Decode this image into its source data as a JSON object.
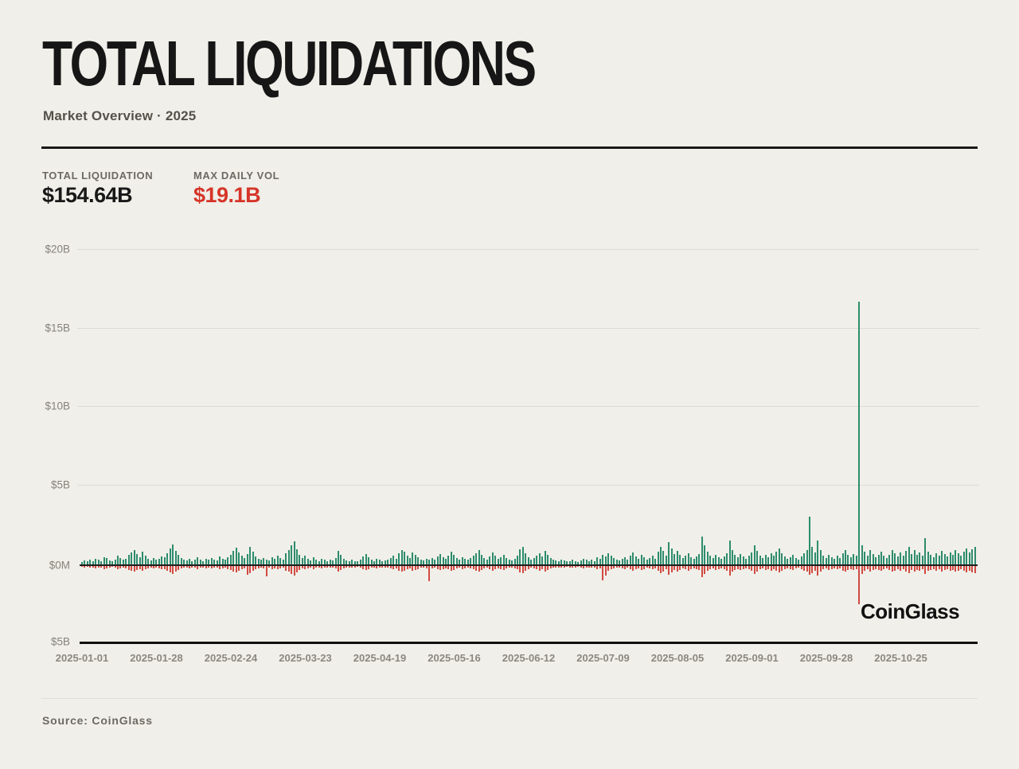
{
  "header": {
    "title": "TOTAL LIQUIDATIONS",
    "subtitle": "Market Overview · 2025"
  },
  "stats": [
    {
      "label": "TOTAL LIQUIDATION",
      "value": "$154.64B",
      "color": "#181818"
    },
    {
      "label": "MAX DAILY VOL",
      "value": "$19.1B",
      "color": "#d63428"
    }
  ],
  "watermark": "CoinGlass",
  "footer": {
    "source": "Source: CoinGlass"
  },
  "colors": {
    "background": "#f0efe9",
    "up_bar": "#2e8c6d",
    "down_bar": "#d14a42",
    "gridline": "#dcdbd3",
    "axis_text": "#8b8880"
  },
  "chart_data": {
    "type": "bar",
    "title": "Total liquidations per day, 2025",
    "x_start_date": "2025-01-01",
    "x_tick_labels": [
      "2025-01-01",
      "2025-01-28",
      "2025-02-24",
      "2025-03-23",
      "2025-04-19",
      "2025-05-16",
      "2025-06-12",
      "2025-07-09",
      "2025-08-05",
      "2025-09-01",
      "2025-09-28",
      "2025-10-25"
    ],
    "y_tick_labels": [
      "$20B",
      "$15B",
      "$10B",
      "$5B",
      "$0M",
      "$5B"
    ],
    "y_axis_unit": "USD billions (bottom $5B is plotted downward)",
    "ylim": [
      -5,
      20
    ],
    "grid": "horizontal",
    "notable_points": [
      {
        "date": "2025-10-10",
        "up": 16.6,
        "down": 2.4,
        "note": "largest spike, max daily vol $19.1B"
      },
      {
        "date": "2025-09-22",
        "up": 3.0,
        "down": 0.55
      }
    ],
    "series": [
      {
        "name": "green-up",
        "color": "#2e8c6d",
        "values": [
          0.15,
          0.25,
          0.18,
          0.3,
          0.22,
          0.35,
          0.28,
          0.2,
          0.45,
          0.38,
          0.25,
          0.18,
          0.3,
          0.55,
          0.4,
          0.28,
          0.35,
          0.6,
          0.75,
          0.9,
          0.65,
          0.45,
          0.8,
          0.55,
          0.35,
          0.25,
          0.4,
          0.3,
          0.35,
          0.5,
          0.45,
          0.7,
          1.0,
          1.25,
          0.85,
          0.6,
          0.4,
          0.3,
          0.25,
          0.35,
          0.2,
          0.28,
          0.45,
          0.3,
          0.22,
          0.35,
          0.28,
          0.4,
          0.3,
          0.25,
          0.5,
          0.35,
          0.28,
          0.45,
          0.6,
          0.85,
          1.05,
          0.75,
          0.55,
          0.4,
          0.65,
          1.1,
          0.8,
          0.5,
          0.35,
          0.28,
          0.4,
          0.3,
          0.25,
          0.45,
          0.35,
          0.55,
          0.4,
          0.3,
          0.7,
          0.9,
          1.2,
          1.45,
          0.95,
          0.6,
          0.4,
          0.55,
          0.35,
          0.25,
          0.45,
          0.3,
          0.22,
          0.35,
          0.28,
          0.2,
          0.3,
          0.25,
          0.4,
          0.85,
          0.6,
          0.35,
          0.25,
          0.2,
          0.3,
          0.22,
          0.18,
          0.28,
          0.5,
          0.65,
          0.45,
          0.3,
          0.22,
          0.35,
          0.28,
          0.2,
          0.25,
          0.3,
          0.4,
          0.55,
          0.35,
          0.7,
          0.9,
          0.8,
          0.55,
          0.4,
          0.75,
          0.6,
          0.45,
          0.3,
          0.25,
          0.35,
          0.28,
          0.4,
          0.3,
          0.5,
          0.65,
          0.45,
          0.35,
          0.55,
          0.8,
          0.6,
          0.4,
          0.3,
          0.45,
          0.35,
          0.28,
          0.4,
          0.55,
          0.7,
          0.9,
          0.6,
          0.4,
          0.3,
          0.5,
          0.75,
          0.55,
          0.35,
          0.45,
          0.6,
          0.4,
          0.3,
          0.25,
          0.35,
          0.55,
          0.95,
          1.1,
          0.7,
          0.45,
          0.3,
          0.4,
          0.55,
          0.7,
          0.5,
          0.85,
          0.6,
          0.4,
          0.3,
          0.25,
          0.2,
          0.3,
          0.25,
          0.18,
          0.22,
          0.28,
          0.2,
          0.15,
          0.25,
          0.35,
          0.3,
          0.22,
          0.28,
          0.2,
          0.45,
          0.35,
          0.6,
          0.5,
          0.7,
          0.55,
          0.4,
          0.3,
          0.25,
          0.35,
          0.45,
          0.3,
          0.55,
          0.75,
          0.5,
          0.35,
          0.6,
          0.45,
          0.3,
          0.4,
          0.55,
          0.35,
          0.8,
          1.1,
          0.85,
          0.55,
          1.4,
          1.0,
          0.65,
          0.85,
          0.6,
          0.4,
          0.55,
          0.7,
          0.45,
          0.35,
          0.5,
          0.65,
          1.75,
          1.2,
          0.8,
          0.55,
          0.4,
          0.6,
          0.45,
          0.35,
          0.5,
          0.7,
          1.5,
          0.9,
          0.6,
          0.45,
          0.65,
          0.5,
          0.35,
          0.55,
          0.75,
          1.2,
          0.85,
          0.55,
          0.4,
          0.6,
          0.45,
          0.7,
          0.55,
          0.8,
          1.0,
          0.7,
          0.5,
          0.35,
          0.45,
          0.6,
          0.4,
          0.3,
          0.5,
          0.7,
          0.9,
          3.0,
          1.1,
          0.75,
          1.5,
          0.9,
          0.55,
          0.4,
          0.6,
          0.45,
          0.35,
          0.55,
          0.4,
          0.7,
          0.9,
          0.6,
          0.45,
          0.65,
          0.55,
          16.6,
          1.2,
          0.8,
          0.55,
          0.9,
          0.65,
          0.45,
          0.6,
          0.8,
          0.55,
          0.4,
          0.6,
          0.9,
          0.7,
          0.5,
          0.75,
          0.55,
          0.85,
          1.1,
          0.65,
          0.9,
          0.6,
          0.75,
          0.55,
          1.65,
          0.8,
          0.6,
          0.45,
          0.7,
          0.55,
          0.85,
          0.65,
          0.5,
          0.75,
          0.6,
          0.9,
          0.7,
          0.55,
          0.8,
          1.0,
          0.75,
          0.95,
          1.1
        ]
      },
      {
        "name": "red-down",
        "color": "#d14a42",
        "values": [
          0.06,
          0.1,
          0.07,
          0.12,
          0.09,
          0.14,
          0.11,
          0.08,
          0.18,
          0.15,
          0.1,
          0.07,
          0.12,
          0.22,
          0.16,
          0.11,
          0.14,
          0.24,
          0.3,
          0.36,
          0.26,
          0.18,
          0.32,
          0.22,
          0.14,
          0.1,
          0.16,
          0.12,
          0.14,
          0.2,
          0.18,
          0.28,
          0.4,
          0.5,
          0.34,
          0.24,
          0.16,
          0.12,
          0.1,
          0.14,
          0.08,
          0.11,
          0.18,
          0.12,
          0.09,
          0.14,
          0.11,
          0.16,
          0.12,
          0.1,
          0.2,
          0.14,
          0.11,
          0.18,
          0.24,
          0.34,
          0.42,
          0.3,
          0.22,
          0.16,
          0.55,
          0.44,
          0.32,
          0.2,
          0.14,
          0.11,
          0.16,
          0.65,
          0.1,
          0.18,
          0.14,
          0.22,
          0.16,
          0.12,
          0.28,
          0.36,
          0.48,
          0.58,
          0.38,
          0.24,
          0.16,
          0.22,
          0.14,
          0.1,
          0.18,
          0.12,
          0.09,
          0.14,
          0.11,
          0.08,
          0.12,
          0.1,
          0.16,
          0.34,
          0.24,
          0.14,
          0.1,
          0.08,
          0.12,
          0.09,
          0.07,
          0.11,
          0.2,
          0.26,
          0.18,
          0.12,
          0.09,
          0.14,
          0.11,
          0.08,
          0.1,
          0.12,
          0.16,
          0.22,
          0.14,
          0.28,
          0.36,
          0.32,
          0.22,
          0.16,
          0.3,
          0.24,
          0.18,
          0.12,
          0.1,
          0.14,
          0.95,
          0.16,
          0.12,
          0.2,
          0.26,
          0.18,
          0.14,
          0.22,
          0.32,
          0.24,
          0.16,
          0.12,
          0.18,
          0.14,
          0.11,
          0.16,
          0.22,
          0.28,
          0.36,
          0.24,
          0.16,
          0.12,
          0.2,
          0.3,
          0.22,
          0.14,
          0.18,
          0.24,
          0.16,
          0.12,
          0.1,
          0.14,
          0.22,
          0.38,
          0.44,
          0.28,
          0.18,
          0.12,
          0.16,
          0.22,
          0.28,
          0.2,
          0.34,
          0.24,
          0.16,
          0.12,
          0.1,
          0.08,
          0.12,
          0.1,
          0.07,
          0.09,
          0.11,
          0.08,
          0.06,
          0.1,
          0.14,
          0.12,
          0.09,
          0.11,
          0.08,
          0.18,
          0.14,
          0.9,
          0.6,
          0.28,
          0.22,
          0.16,
          0.12,
          0.1,
          0.14,
          0.18,
          0.12,
          0.22,
          0.3,
          0.2,
          0.14,
          0.24,
          0.18,
          0.12,
          0.16,
          0.22,
          0.14,
          0.32,
          0.44,
          0.34,
          0.22,
          0.56,
          0.4,
          0.26,
          0.34,
          0.24,
          0.16,
          0.22,
          0.28,
          0.18,
          0.14,
          0.2,
          0.26,
          0.7,
          0.48,
          0.32,
          0.22,
          0.16,
          0.24,
          0.18,
          0.14,
          0.2,
          0.28,
          0.6,
          0.36,
          0.24,
          0.18,
          0.26,
          0.2,
          0.14,
          0.22,
          0.3,
          0.48,
          0.34,
          0.22,
          0.16,
          0.24,
          0.18,
          0.28,
          0.22,
          0.32,
          0.4,
          0.28,
          0.2,
          0.14,
          0.18,
          0.24,
          0.16,
          0.12,
          0.2,
          0.28,
          0.36,
          0.55,
          0.44,
          0.3,
          0.6,
          0.36,
          0.22,
          0.16,
          0.24,
          0.18,
          0.14,
          0.22,
          0.16,
          0.28,
          0.36,
          0.24,
          0.18,
          0.26,
          0.22,
          2.4,
          0.48,
          0.32,
          0.22,
          0.36,
          0.26,
          0.18,
          0.24,
          0.32,
          0.22,
          0.16,
          0.24,
          0.36,
          0.28,
          0.2,
          0.3,
          0.22,
          0.34,
          0.44,
          0.26,
          0.36,
          0.24,
          0.3,
          0.22,
          0.5,
          0.32,
          0.24,
          0.18,
          0.28,
          0.22,
          0.34,
          0.26,
          0.2,
          0.3,
          0.24,
          0.36,
          0.28,
          0.22,
          0.32,
          0.4,
          0.3,
          0.38,
          0.44
        ]
      }
    ]
  }
}
